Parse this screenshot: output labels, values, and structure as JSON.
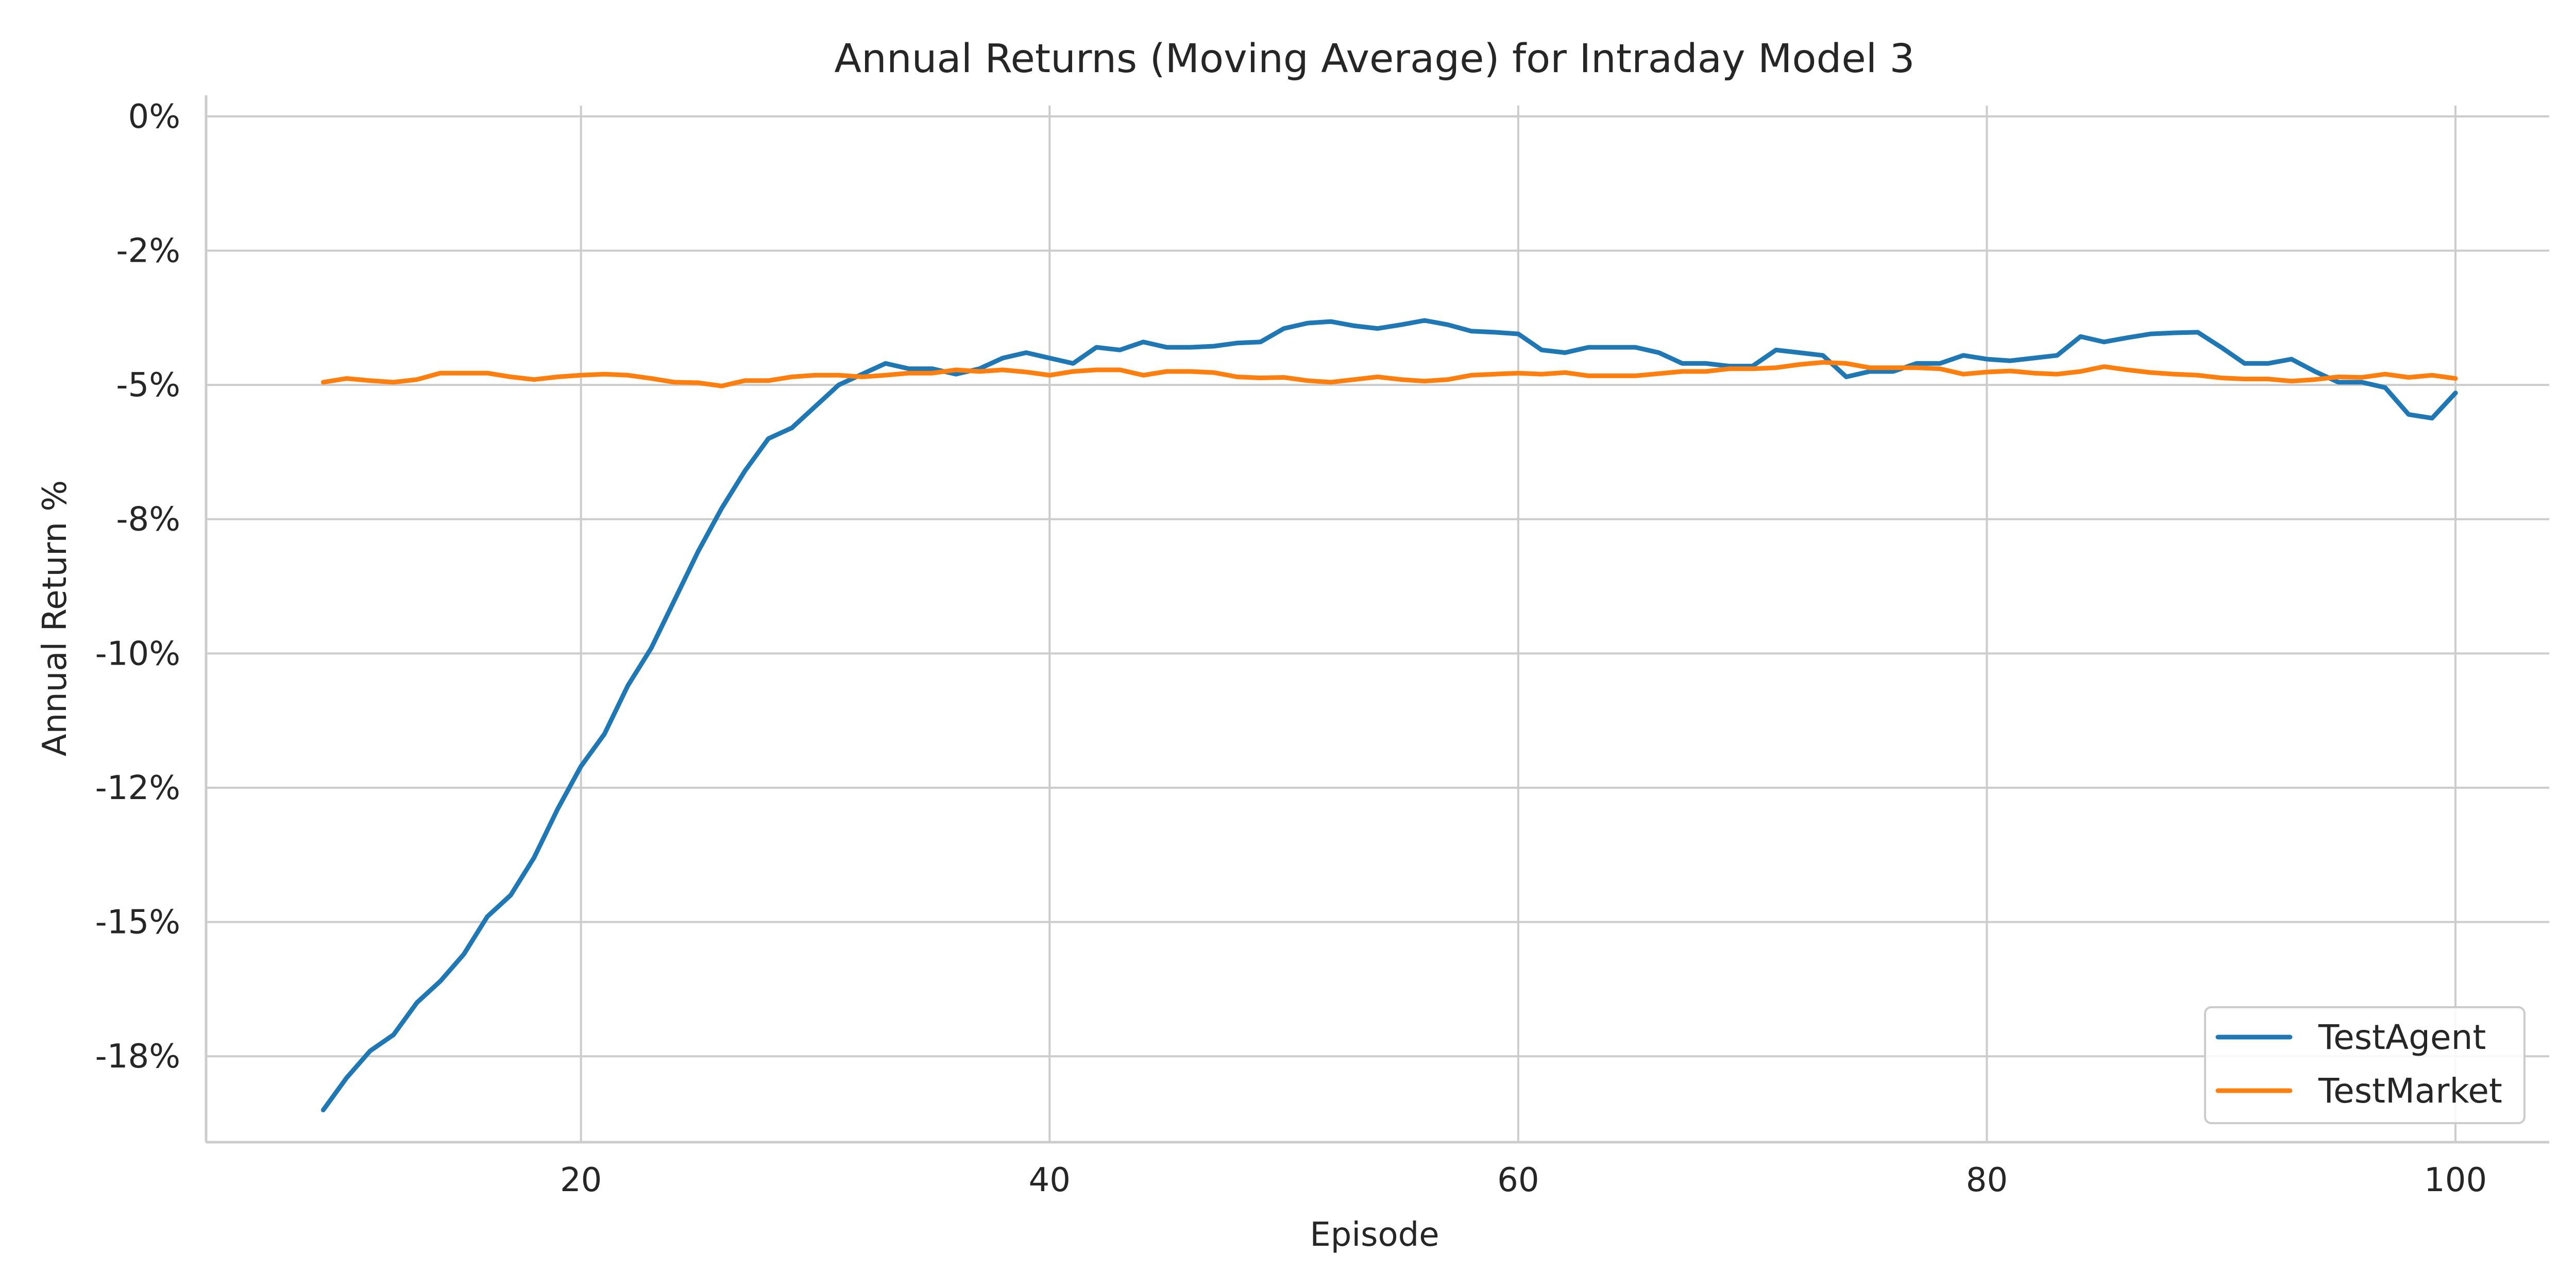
{
  "chart_data": {
    "type": "line",
    "title": "Annual Returns (Moving Average) for Intraday Model 3",
    "xlabel": "Episode",
    "ylabel": "Annual Return %",
    "xlim": [
      4,
      104
    ],
    "ylim": [
      -19.1,
      0.2
    ],
    "x_ticks": [
      20,
      40,
      60,
      80,
      100
    ],
    "y_ticks": [
      0,
      -2.5,
      -5,
      -7.5,
      -10,
      -12.5,
      -15,
      -17.5
    ],
    "y_tick_labels": [
      "0%",
      "-2%",
      "-5%",
      "-8%",
      "-10%",
      "-12%",
      "-15%",
      "-18%"
    ],
    "grid": true,
    "legend_position": "bottom-right",
    "x": [
      9,
      10,
      11,
      12,
      13,
      14,
      15,
      16,
      17,
      18,
      19,
      20,
      21,
      22,
      23,
      24,
      25,
      26,
      27,
      28,
      29,
      30,
      31,
      32,
      33,
      34,
      35,
      36,
      37,
      38,
      39,
      40,
      41,
      42,
      43,
      44,
      45,
      46,
      47,
      48,
      49,
      50,
      51,
      52,
      53,
      54,
      55,
      56,
      57,
      58,
      59,
      60,
      61,
      62,
      63,
      64,
      65,
      66,
      67,
      68,
      69,
      70,
      71,
      72,
      73,
      74,
      75,
      76,
      77,
      78,
      79,
      80,
      81,
      82,
      83,
      84,
      85,
      86,
      87,
      88,
      89,
      90,
      91,
      92,
      93,
      94,
      95,
      96,
      97,
      98,
      99,
      100
    ],
    "series": [
      {
        "name": "TestAgent",
        "color": "#1f77b4",
        "values": [
          -18.5,
          -17.9,
          -17.4,
          -17.1,
          -16.5,
          -16.1,
          -15.6,
          -14.9,
          -14.5,
          -13.8,
          -12.9,
          -12.1,
          -11.5,
          -10.6,
          -9.9,
          -9.0,
          -8.1,
          -7.3,
          -6.6,
          -6.0,
          -5.8,
          -5.4,
          -5.0,
          -4.8,
          -4.6,
          -4.7,
          -4.7,
          -4.8,
          -4.7,
          -4.5,
          -4.4,
          -4.5,
          -4.6,
          -4.3,
          -4.35,
          -4.2,
          -4.3,
          -4.3,
          -4.28,
          -4.22,
          -4.2,
          -3.95,
          -3.85,
          -3.82,
          -3.9,
          -3.95,
          -3.88,
          -3.8,
          -3.88,
          -4.0,
          -4.02,
          -4.05,
          -4.35,
          -4.4,
          -4.3,
          -4.3,
          -4.3,
          -4.4,
          -4.6,
          -4.6,
          -4.65,
          -4.65,
          -4.35,
          -4.4,
          -4.45,
          -4.85,
          -4.75,
          -4.75,
          -4.6,
          -4.6,
          -4.45,
          -4.52,
          -4.55,
          -4.5,
          -4.45,
          -4.1,
          -4.2,
          -4.12,
          -4.05,
          -4.03,
          -4.02,
          -4.3,
          -4.6,
          -4.6,
          -4.52,
          -4.75,
          -4.95,
          -4.95,
          -5.05,
          -5.55,
          -5.62,
          -5.15
        ]
      },
      {
        "name": "TestMarket",
        "color": "#ff7f0e",
        "values": [
          -4.95,
          -4.88,
          -4.92,
          -4.95,
          -4.9,
          -4.78,
          -4.78,
          -4.78,
          -4.85,
          -4.9,
          -4.85,
          -4.82,
          -4.8,
          -4.82,
          -4.88,
          -4.95,
          -4.96,
          -5.02,
          -4.92,
          -4.92,
          -4.85,
          -4.82,
          -4.82,
          -4.85,
          -4.82,
          -4.78,
          -4.78,
          -4.72,
          -4.75,
          -4.72,
          -4.76,
          -4.82,
          -4.75,
          -4.72,
          -4.72,
          -4.82,
          -4.75,
          -4.75,
          -4.77,
          -4.85,
          -4.87,
          -4.86,
          -4.92,
          -4.95,
          -4.9,
          -4.85,
          -4.9,
          -4.93,
          -4.9,
          -4.82,
          -4.8,
          -4.78,
          -4.8,
          -4.77,
          -4.83,
          -4.83,
          -4.83,
          -4.79,
          -4.75,
          -4.75,
          -4.7,
          -4.7,
          -4.68,
          -4.62,
          -4.58,
          -4.6,
          -4.68,
          -4.68,
          -4.68,
          -4.7,
          -4.8,
          -4.76,
          -4.74,
          -4.78,
          -4.8,
          -4.75,
          -4.66,
          -4.72,
          -4.77,
          -4.8,
          -4.82,
          -4.87,
          -4.89,
          -4.89,
          -4.93,
          -4.9,
          -4.85,
          -4.86,
          -4.8,
          -4.86,
          -4.82,
          -4.88
        ]
      }
    ]
  }
}
